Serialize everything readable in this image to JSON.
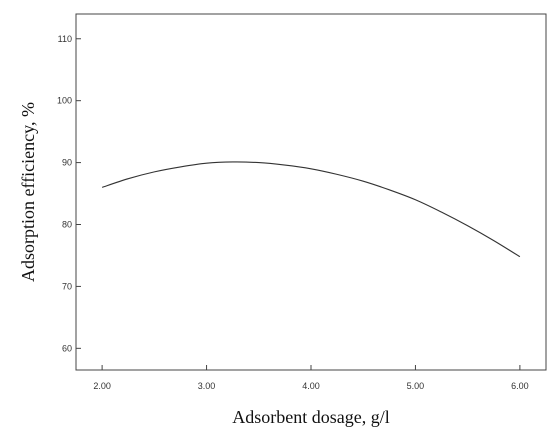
{
  "chart_data": {
    "type": "line",
    "title": "",
    "xlabel": "Adsorbent dosage, g/l",
    "ylabel": "Adsorption efficiency, %",
    "xlim": [
      1.75,
      6.25
    ],
    "ylim": [
      56.5,
      114
    ],
    "x_ticks": [
      "2.00",
      "3.00",
      "4.00",
      "5.00",
      "6.00"
    ],
    "y_ticks": [
      "60",
      "70",
      "80",
      "90",
      "100",
      "110"
    ],
    "x_tick_values": [
      2,
      3,
      4,
      5,
      6
    ],
    "y_tick_values": [
      60,
      70,
      80,
      90,
      100,
      110
    ],
    "grid": false,
    "legend": "none",
    "line_color": "#333333",
    "series": [
      {
        "x": [
          2.0,
          2.25,
          2.5,
          2.75,
          3.0,
          3.25,
          3.5,
          3.75,
          4.0,
          4.25,
          4.5,
          4.75,
          5.0,
          5.25,
          5.5,
          5.75,
          6.0
        ],
        "y": [
          86.0,
          87.4,
          88.5,
          89.3,
          89.9,
          90.1,
          90.0,
          89.6,
          89.0,
          88.1,
          87.0,
          85.6,
          84.0,
          82.0,
          79.8,
          77.4,
          74.8
        ]
      }
    ]
  }
}
